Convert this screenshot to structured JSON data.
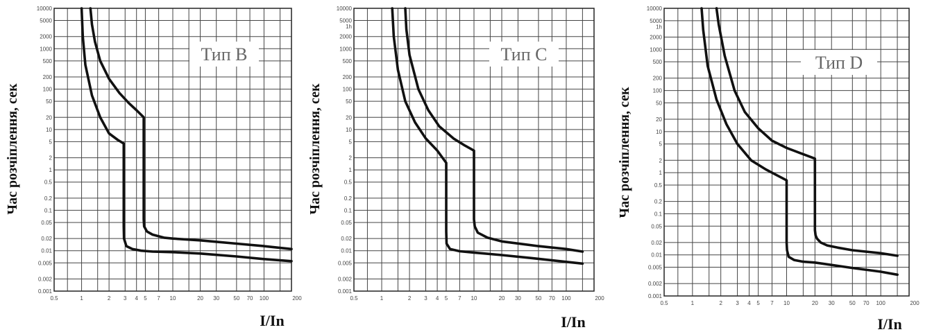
{
  "chart_data": [
    {
      "type": "line",
      "title": "Тип B",
      "xlabel": "I/In",
      "ylabel": "Час розчіплення, сек",
      "x_scale": "log",
      "y_scale": "log",
      "xlim": [
        0.5,
        200
      ],
      "ylim": [
        0.001,
        10000
      ],
      "x_ticks": [
        "0.5",
        "1",
        "2",
        "3",
        "4",
        "5",
        "7",
        "10",
        "20",
        "30",
        "50",
        "70",
        "100",
        "200"
      ],
      "y_ticks": [
        "10000",
        "5000",
        "2000",
        "1000",
        "500",
        "200",
        "100",
        "50",
        "20",
        "10",
        "5",
        "2",
        "1",
        "0.5",
        "0.2",
        "0.1",
        "0.05",
        "0.02",
        "0.01",
        "0.005",
        "0.002",
        "0.001"
      ],
      "series": [
        {
          "x": [
            1.0,
            1.03,
            1.1,
            1.3,
            1.6,
            2.0,
            2.5,
            2.9,
            2.9,
            2.92,
            3.1,
            3.6,
            4.5,
            6,
            10,
            20,
            50,
            100,
            200
          ],
          "y": [
            10000,
            2000,
            400,
            70,
            20,
            8,
            5.5,
            4.5,
            0.04,
            0.02,
            0.013,
            0.011,
            0.01,
            0.0095,
            0.0092,
            0.0085,
            0.0072,
            0.0062,
            0.0055
          ]
        },
        {
          "x": [
            1.25,
            1.3,
            1.4,
            1.6,
            2.0,
            2.6,
            3.3,
            4.0,
            4.8,
            4.8,
            4.85,
            5.2,
            6,
            8,
            10,
            20,
            50,
            100,
            200
          ],
          "y": [
            10000,
            4000,
            1500,
            500,
            180,
            80,
            45,
            30,
            20,
            0.06,
            0.04,
            0.03,
            0.025,
            0.021,
            0.02,
            0.018,
            0.015,
            0.013,
            0.011
          ]
        }
      ]
    },
    {
      "type": "line",
      "title": "Тип C",
      "xlabel": "I/In",
      "ylabel": "Час розчіплення, сек",
      "x_scale": "log",
      "y_scale": "log",
      "xlim": [
        0.5,
        200
      ],
      "ylim": [
        0.001,
        10000
      ],
      "x_ticks": [
        "0.5",
        "1",
        "2",
        "3",
        "4",
        "5",
        "7",
        "10",
        "20",
        "30",
        "50",
        "70",
        "100",
        "200"
      ],
      "y_ticks": [
        "10000",
        "5000",
        "1h",
        "2000",
        "1000",
        "500",
        "200",
        "100",
        "50",
        "20",
        "10",
        "5",
        "2",
        "1",
        "0.5",
        "0.2",
        "0.1",
        "0.05",
        "0.02",
        "0.01",
        "0.005",
        "0.002",
        "0.001"
      ],
      "series": [
        {
          "x": [
            1.3,
            1.35,
            1.5,
            1.8,
            2.3,
            3.0,
            4.0,
            5.0,
            5.0,
            5.05,
            5.5,
            7,
            10,
            20,
            50,
            100,
            150
          ],
          "y": [
            10000,
            2000,
            300,
            50,
            15,
            6,
            3,
            1.5,
            0.03,
            0.015,
            0.011,
            0.0097,
            0.009,
            0.0078,
            0.0063,
            0.0053,
            0.0048
          ]
        },
        {
          "x": [
            1.8,
            1.85,
            2.0,
            2.5,
            3.2,
            4.2,
            6.0,
            8.0,
            10.0,
            10.0,
            10.2,
            11,
            14,
            20,
            50,
            100,
            150
          ],
          "y": [
            10000,
            3000,
            700,
            100,
            30,
            12,
            6,
            4,
            3,
            0.06,
            0.04,
            0.028,
            0.021,
            0.017,
            0.013,
            0.011,
            0.0095
          ]
        }
      ]
    },
    {
      "type": "line",
      "title": "Тип D",
      "xlabel": "I/In",
      "ylabel": "Час розчіплення, сек",
      "x_scale": "log",
      "y_scale": "log",
      "xlim": [
        0.5,
        200
      ],
      "ylim": [
        0.001,
        10000
      ],
      "x_ticks": [
        "0.5",
        "1",
        "2",
        "3",
        "4",
        "5",
        "7",
        "10",
        "20",
        "30",
        "50",
        "70",
        "100",
        "200"
      ],
      "y_ticks": [
        "10000",
        "5000",
        "1h",
        "2000",
        "1000",
        "500",
        "200",
        "100",
        "50",
        "20",
        "10",
        "5",
        "2",
        "1",
        "0.5",
        "0.2",
        "0.1",
        "0.05",
        "0.02",
        "0.01",
        "0.005",
        "0.002",
        "0.001"
      ],
      "series": [
        {
          "x": [
            1.25,
            1.3,
            1.45,
            1.8,
            2.3,
            3.0,
            4.2,
            6,
            8,
            10,
            10,
            10.1,
            10.5,
            12,
            15,
            20,
            50,
            100,
            150
          ],
          "y": [
            10000,
            3000,
            400,
            60,
            15,
            5,
            2,
            1.2,
            0.85,
            0.65,
            0.02,
            0.013,
            0.009,
            0.0075,
            0.0068,
            0.0065,
            0.0048,
            0.0039,
            0.0033
          ]
        },
        {
          "x": [
            1.8,
            1.9,
            2.2,
            2.8,
            3.6,
            5.0,
            7.0,
            10,
            14,
            20,
            20,
            20.3,
            21,
            23,
            27,
            35,
            50,
            100,
            150
          ],
          "y": [
            10000,
            4000,
            700,
            100,
            30,
            12,
            6,
            4,
            3,
            2.2,
            0.04,
            0.03,
            0.025,
            0.02,
            0.017,
            0.015,
            0.013,
            0.011,
            0.0095
          ]
        }
      ]
    }
  ]
}
